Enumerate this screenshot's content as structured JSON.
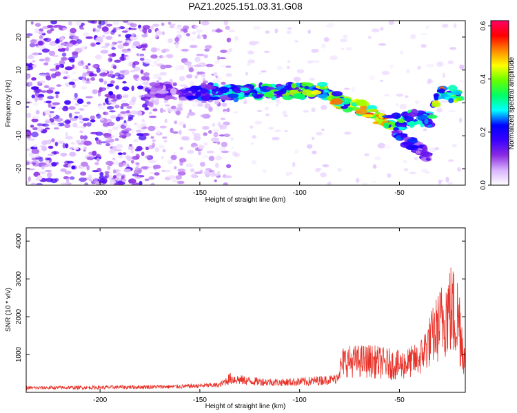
{
  "title": "PAZ1.2025.151.03.31.G08",
  "colors": {
    "line": "#e8332a",
    "axis": "#000000",
    "background": "#ffffff"
  },
  "chart_data": [
    {
      "type": "heatmap",
      "xlabel": "Height of straight line (km)",
      "ylabel": "Frequency (Hz)",
      "xlim": [
        -237,
        -17
      ],
      "ylim": [
        -25,
        25
      ],
      "x_ticks": [
        -200,
        -150,
        -100,
        -50
      ],
      "y_ticks": [
        -20,
        -10,
        0,
        10,
        20
      ],
      "grid": false,
      "colorbar": {
        "label": "Normalized spectral amplitude",
        "range": [
          0,
          0.62
        ],
        "ticks": [
          0.0,
          0.2,
          0.4,
          0.6
        ],
        "colormap": [
          "#ffffff",
          "#d9b3ff",
          "#8a2be2",
          "#3a00ff",
          "#0000ff",
          "#00ffff",
          "#00ff66",
          "#66ff00",
          "#ffff00",
          "#ff8800",
          "#ff0000",
          "#ff0066"
        ]
      },
      "ridge": [
        {
          "x": -175,
          "y": 4.0,
          "a": 0.1
        },
        {
          "x": -165,
          "y": 3.5,
          "a": 0.14
        },
        {
          "x": -155,
          "y": 3.0,
          "a": 0.2
        },
        {
          "x": -145,
          "y": 3.5,
          "a": 0.26
        },
        {
          "x": -135,
          "y": 3.0,
          "a": 0.3
        },
        {
          "x": -125,
          "y": 3.5,
          "a": 0.34
        },
        {
          "x": -115,
          "y": 3.5,
          "a": 0.36
        },
        {
          "x": -105,
          "y": 3.5,
          "a": 0.38
        },
        {
          "x": -95,
          "y": 3.8,
          "a": 0.4
        },
        {
          "x": -88,
          "y": 4.2,
          "a": 0.44
        },
        {
          "x": -80,
          "y": 0.5,
          "a": 0.5
        },
        {
          "x": -70,
          "y": -1.5,
          "a": 0.46
        },
        {
          "x": -60,
          "y": -4.5,
          "a": 0.56
        },
        {
          "x": -50,
          "y": -6.0,
          "a": 0.36
        },
        {
          "x": -42,
          "y": -4.5,
          "a": 0.3
        },
        {
          "x": -35,
          "y": -5.0,
          "a": 0.28
        },
        {
          "x": -30,
          "y": 3.5,
          "a": 0.5
        },
        {
          "x": -20,
          "y": 2.0,
          "a": 0.4
        }
      ],
      "secondary_ridge": [
        {
          "x": -52,
          "y": -9.0,
          "a": 0.25
        },
        {
          "x": -45,
          "y": -12.0,
          "a": 0.22
        },
        {
          "x": -40,
          "y": -14.0,
          "a": 0.2
        },
        {
          "x": -35,
          "y": -16.5,
          "a": 0.15
        }
      ]
    },
    {
      "type": "line",
      "xlabel": "Height of straight line (km)",
      "ylabel": "SNR (10 * v/v)",
      "xlim": [
        -237,
        -17
      ],
      "ylim": [
        0,
        4350
      ],
      "x_ticks": [
        -200,
        -150,
        -100,
        -50
      ],
      "y_ticks": [
        1000,
        2000,
        3000,
        4000
      ],
      "grid": false,
      "envelope": [
        {
          "x": -237,
          "base": 100,
          "spread": 90
        },
        {
          "x": -200,
          "base": 110,
          "spread": 100
        },
        {
          "x": -160,
          "base": 130,
          "spread": 110
        },
        {
          "x": -140,
          "base": 170,
          "spread": 130
        },
        {
          "x": -135,
          "base": 300,
          "spread": 320
        },
        {
          "x": -125,
          "base": 250,
          "spread": 230
        },
        {
          "x": -110,
          "base": 220,
          "spread": 200
        },
        {
          "x": -95,
          "base": 240,
          "spread": 250
        },
        {
          "x": -82,
          "base": 300,
          "spread": 260
        },
        {
          "x": -78,
          "base": 650,
          "spread": 850
        },
        {
          "x": -65,
          "base": 650,
          "spread": 900
        },
        {
          "x": -50,
          "base": 550,
          "spread": 800
        },
        {
          "x": -40,
          "base": 700,
          "spread": 900
        },
        {
          "x": -33,
          "base": 1200,
          "spread": 1600
        },
        {
          "x": -25,
          "base": 1700,
          "spread": 2600
        },
        {
          "x": -20,
          "base": 1400,
          "spread": 2500
        },
        {
          "x": -17,
          "base": 600,
          "spread": 700
        }
      ]
    }
  ]
}
